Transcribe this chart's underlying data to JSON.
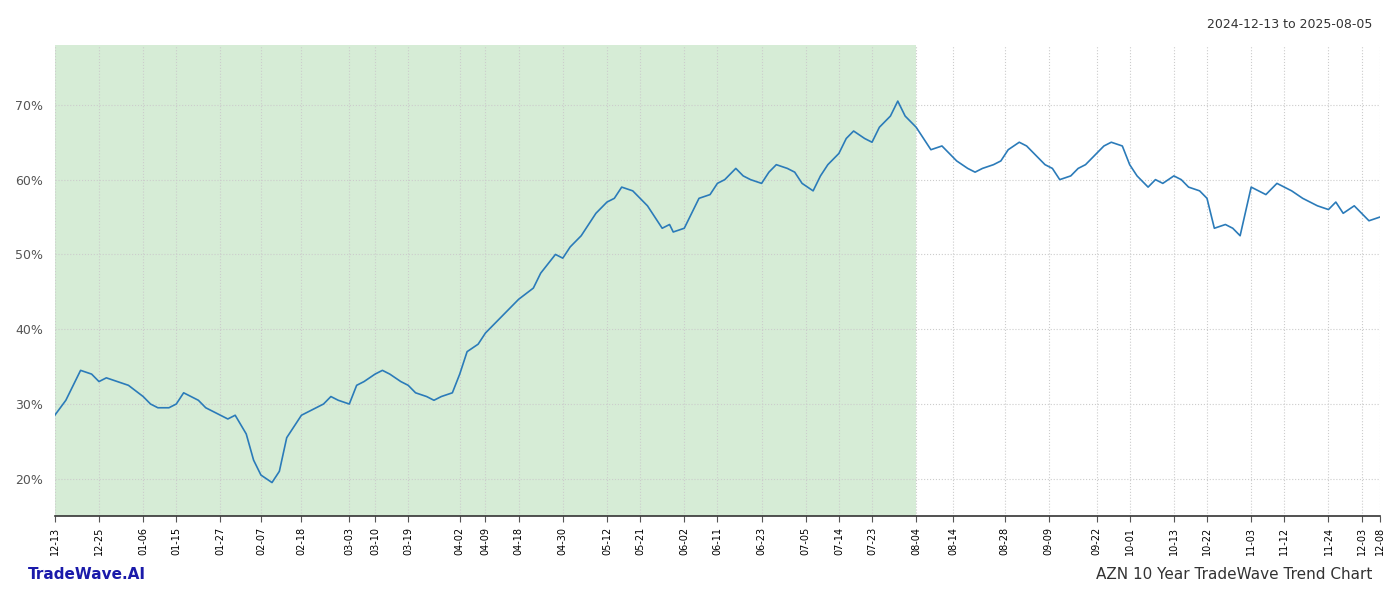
{
  "title_top_right": "2024-12-13 to 2025-08-05",
  "title_bottom_left": "TradeWave.AI",
  "title_bottom_right": "AZN 10 Year TradeWave Trend Chart",
  "background_color": "#ffffff",
  "shaded_region_color": "#d6ecd6",
  "line_color": "#2b7bb9",
  "line_width": 1.2,
  "grid_color": "#cccccc",
  "grid_style": "dotted",
  "y_ticks": [
    20,
    30,
    40,
    50,
    60,
    70
  ],
  "y_min": 15,
  "y_max": 78,
  "shaded_start": "2024-12-13",
  "shaded_end": "2025-08-04",
  "dates": [
    "2024-12-13",
    "2024-12-16",
    "2024-12-18",
    "2024-12-20",
    "2024-12-23",
    "2024-12-25",
    "2024-12-27",
    "2024-12-30",
    "2025-01-02",
    "2025-01-06",
    "2025-01-08",
    "2025-01-10",
    "2025-01-13",
    "2025-01-15",
    "2025-01-17",
    "2025-01-21",
    "2025-01-23",
    "2025-01-27",
    "2025-01-29",
    "2025-01-31",
    "2025-02-03",
    "2025-02-05",
    "2025-02-07",
    "2025-02-10",
    "2025-02-12",
    "2025-02-14",
    "2025-02-18",
    "2025-02-20",
    "2025-02-24",
    "2025-02-26",
    "2025-02-28",
    "2025-03-03",
    "2025-03-05",
    "2025-03-07",
    "2025-03-10",
    "2025-03-12",
    "2025-03-14",
    "2025-03-17",
    "2025-03-19",
    "2025-03-21",
    "2025-03-24",
    "2025-03-26",
    "2025-03-28",
    "2025-03-31",
    "2025-04-02",
    "2025-04-04",
    "2025-04-07",
    "2025-04-09",
    "2025-04-11",
    "2025-04-14",
    "2025-04-16",
    "2025-04-18",
    "2025-04-22",
    "2025-04-24",
    "2025-04-28",
    "2025-04-30",
    "2025-05-02",
    "2025-05-05",
    "2025-05-07",
    "2025-05-09",
    "2025-05-12",
    "2025-05-14",
    "2025-05-16",
    "2025-05-19",
    "2025-05-21",
    "2025-05-23",
    "2025-05-27",
    "2025-05-29",
    "2025-05-30",
    "2025-06-02",
    "2025-06-04",
    "2025-06-06",
    "2025-06-09",
    "2025-06-11",
    "2025-06-13",
    "2025-06-16",
    "2025-06-18",
    "2025-06-20",
    "2025-06-23",
    "2025-06-25",
    "2025-06-27",
    "2025-06-30",
    "2025-07-02",
    "2025-07-04",
    "2025-07-07",
    "2025-07-09",
    "2025-07-11",
    "2025-07-14",
    "2025-07-16",
    "2025-07-18",
    "2025-07-21",
    "2025-07-23",
    "2025-07-25",
    "2025-07-28",
    "2025-07-30",
    "2025-08-01",
    "2025-08-04",
    "2025-08-06",
    "2025-08-08",
    "2025-08-11",
    "2025-08-13",
    "2025-08-15",
    "2025-08-18",
    "2025-08-20",
    "2025-08-22",
    "2025-08-25",
    "2025-08-27",
    "2025-08-29",
    "2025-09-01",
    "2025-09-03",
    "2025-09-05",
    "2025-09-08",
    "2025-09-10",
    "2025-09-12",
    "2025-09-15",
    "2025-09-17",
    "2025-09-19",
    "2025-09-22",
    "2025-09-24",
    "2025-09-26",
    "2025-09-29",
    "2025-10-01",
    "2025-10-03",
    "2025-10-06",
    "2025-10-08",
    "2025-10-10",
    "2025-10-13",
    "2025-10-15",
    "2025-10-17",
    "2025-10-20",
    "2025-10-22",
    "2025-10-24",
    "2025-10-27",
    "2025-10-29",
    "2025-10-31",
    "2025-11-03",
    "2025-11-05",
    "2025-11-07",
    "2025-11-10",
    "2025-11-12",
    "2025-11-14",
    "2025-11-17",
    "2025-11-19",
    "2025-11-21",
    "2025-11-24",
    "2025-11-26",
    "2025-11-28",
    "2025-12-01",
    "2025-12-03",
    "2025-12-05",
    "2025-12-08"
  ],
  "values": [
    28.5,
    30.5,
    32.5,
    34.5,
    34.0,
    33.0,
    33.5,
    33.0,
    32.5,
    31.0,
    30.0,
    29.5,
    29.5,
    30.0,
    31.5,
    30.5,
    29.5,
    28.5,
    28.0,
    28.5,
    26.0,
    22.5,
    20.5,
    19.5,
    21.0,
    25.5,
    28.5,
    29.0,
    30.0,
    31.0,
    30.5,
    30.0,
    32.5,
    33.0,
    34.0,
    34.5,
    34.0,
    33.0,
    32.5,
    31.5,
    31.0,
    30.5,
    31.0,
    31.5,
    34.0,
    37.0,
    38.0,
    39.5,
    40.5,
    42.0,
    43.0,
    44.0,
    45.5,
    47.5,
    50.0,
    49.5,
    51.0,
    52.5,
    54.0,
    55.5,
    57.0,
    57.5,
    59.0,
    58.5,
    57.5,
    56.5,
    53.5,
    54.0,
    53.0,
    53.5,
    55.5,
    57.5,
    58.0,
    59.5,
    60.0,
    61.5,
    60.5,
    60.0,
    59.5,
    61.0,
    62.0,
    61.5,
    61.0,
    59.5,
    58.5,
    60.5,
    62.0,
    63.5,
    65.5,
    66.5,
    65.5,
    65.0,
    67.0,
    68.5,
    70.5,
    68.5,
    67.0,
    65.5,
    64.0,
    64.5,
    63.5,
    62.5,
    61.5,
    61.0,
    61.5,
    62.0,
    62.5,
    64.0,
    65.0,
    64.5,
    63.5,
    62.0,
    61.5,
    60.0,
    60.5,
    61.5,
    62.0,
    63.5,
    64.5,
    65.0,
    64.5,
    62.0,
    60.5,
    59.0,
    60.0,
    59.5,
    60.5,
    60.0,
    59.0,
    58.5,
    57.5,
    53.5,
    54.0,
    53.5,
    52.5,
    59.0,
    58.5,
    58.0,
    59.5,
    59.0,
    58.5,
    57.5,
    57.0,
    56.5,
    56.0,
    57.0,
    55.5,
    56.5,
    55.5,
    54.5,
    55.0
  ],
  "xtick_labels": [
    "12-13",
    "12-25",
    "01-06",
    "01-15",
    "01-27",
    "02-07",
    "02-18",
    "03-03",
    "03-10",
    "03-19",
    "04-02",
    "04-09",
    "04-18",
    "04-30",
    "05-12",
    "05-21",
    "06-02",
    "06-11",
    "06-23",
    "07-05",
    "07-14",
    "07-23",
    "08-04",
    "08-14",
    "08-28",
    "09-09",
    "09-22",
    "10-01",
    "10-13",
    "10-22",
    "11-03",
    "11-12",
    "11-24",
    "12-03",
    "12-08"
  ]
}
